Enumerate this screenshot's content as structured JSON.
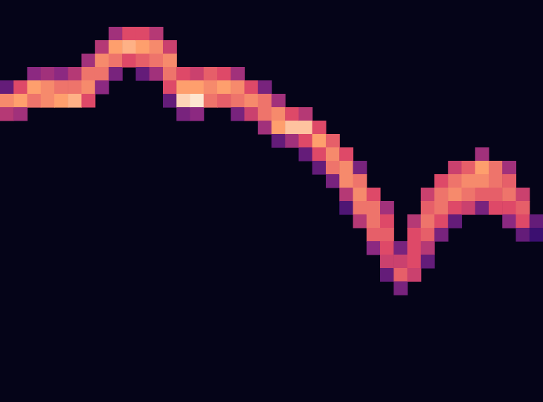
{
  "chart_data": {
    "type": "heatmap",
    "xlim": [
      0,
      40
    ],
    "ylim": [
      0,
      30
    ],
    "tick_labels": false,
    "grid": false,
    "color_range": [
      0,
      1
    ],
    "cells": [
      [
        0,
        6,
        0.3
      ],
      [
        0,
        7,
        0.75
      ],
      [
        0,
        8,
        0.5
      ],
      [
        1,
        6,
        0.6
      ],
      [
        1,
        7,
        0.8
      ],
      [
        1,
        8,
        0.45
      ],
      [
        2,
        5,
        0.4
      ],
      [
        2,
        6,
        0.8
      ],
      [
        2,
        7,
        0.7
      ],
      [
        3,
        5,
        0.45
      ],
      [
        3,
        6,
        0.75
      ],
      [
        3,
        7,
        0.75
      ],
      [
        4,
        5,
        0.4
      ],
      [
        4,
        6,
        0.7
      ],
      [
        4,
        7,
        0.8
      ],
      [
        5,
        5,
        0.5
      ],
      [
        5,
        6,
        0.7
      ],
      [
        5,
        7,
        0.85
      ],
      [
        6,
        4,
        0.45
      ],
      [
        6,
        5,
        0.7
      ],
      [
        6,
        6,
        0.75
      ],
      [
        6,
        7,
        0.6
      ],
      [
        7,
        3,
        0.5
      ],
      [
        7,
        4,
        0.75
      ],
      [
        7,
        5,
        0.7
      ],
      [
        7,
        6,
        0.4
      ],
      [
        8,
        2,
        0.45
      ],
      [
        8,
        3,
        0.8
      ],
      [
        8,
        4,
        0.7
      ],
      [
        8,
        5,
        0.35
      ],
      [
        9,
        2,
        0.6
      ],
      [
        9,
        3,
        0.85
      ],
      [
        9,
        4,
        0.6
      ],
      [
        10,
        2,
        0.6
      ],
      [
        10,
        3,
        0.8
      ],
      [
        10,
        4,
        0.65
      ],
      [
        10,
        5,
        0.3
      ],
      [
        11,
        2,
        0.5
      ],
      [
        11,
        3,
        0.75
      ],
      [
        11,
        4,
        0.7
      ],
      [
        11,
        5,
        0.45
      ],
      [
        12,
        3,
        0.55
      ],
      [
        12,
        4,
        0.75
      ],
      [
        12,
        5,
        0.7
      ],
      [
        12,
        6,
        0.6
      ],
      [
        12,
        7,
        0.3
      ],
      [
        13,
        5,
        0.6
      ],
      [
        13,
        6,
        0.8
      ],
      [
        13,
        7,
        0.95
      ],
      [
        13,
        8,
        0.35
      ],
      [
        14,
        5,
        0.55
      ],
      [
        14,
        6,
        0.8
      ],
      [
        14,
        7,
        1.0
      ],
      [
        14,
        8,
        0.4
      ],
      [
        15,
        5,
        0.65
      ],
      [
        15,
        6,
        0.75
      ],
      [
        15,
        7,
        0.7
      ],
      [
        16,
        5,
        0.6
      ],
      [
        16,
        6,
        0.8
      ],
      [
        16,
        7,
        0.65
      ],
      [
        17,
        5,
        0.45
      ],
      [
        17,
        6,
        0.75
      ],
      [
        17,
        7,
        0.7
      ],
      [
        17,
        8,
        0.35
      ],
      [
        18,
        6,
        0.6
      ],
      [
        18,
        7,
        0.75
      ],
      [
        18,
        8,
        0.55
      ],
      [
        19,
        6,
        0.35
      ],
      [
        19,
        7,
        0.7
      ],
      [
        19,
        8,
        0.7
      ],
      [
        19,
        9,
        0.45
      ],
      [
        20,
        7,
        0.45
      ],
      [
        20,
        8,
        0.75
      ],
      [
        20,
        9,
        0.8
      ],
      [
        20,
        10,
        0.3
      ],
      [
        21,
        8,
        0.6
      ],
      [
        21,
        9,
        0.9
      ],
      [
        21,
        10,
        0.45
      ],
      [
        22,
        8,
        0.5
      ],
      [
        22,
        9,
        0.9
      ],
      [
        22,
        10,
        0.6
      ],
      [
        22,
        11,
        0.3
      ],
      [
        23,
        9,
        0.6
      ],
      [
        23,
        10,
        0.8
      ],
      [
        23,
        11,
        0.6
      ],
      [
        23,
        12,
        0.3
      ],
      [
        24,
        10,
        0.65
      ],
      [
        24,
        11,
        0.75
      ],
      [
        24,
        12,
        0.7
      ],
      [
        24,
        13,
        0.35
      ],
      [
        25,
        11,
        0.6
      ],
      [
        25,
        12,
        0.75
      ],
      [
        25,
        13,
        0.75
      ],
      [
        25,
        14,
        0.5
      ],
      [
        25,
        15,
        0.25
      ],
      [
        26,
        12,
        0.35
      ],
      [
        26,
        13,
        0.7
      ],
      [
        26,
        14,
        0.75
      ],
      [
        26,
        15,
        0.7
      ],
      [
        26,
        16,
        0.5
      ],
      [
        27,
        14,
        0.6
      ],
      [
        27,
        15,
        0.7
      ],
      [
        27,
        16,
        0.7
      ],
      [
        27,
        17,
        0.65
      ],
      [
        27,
        18,
        0.4
      ],
      [
        28,
        15,
        0.45
      ],
      [
        28,
        16,
        0.6
      ],
      [
        28,
        17,
        0.65
      ],
      [
        28,
        18,
        0.6
      ],
      [
        28,
        19,
        0.55
      ],
      [
        28,
        20,
        0.3
      ],
      [
        29,
        18,
        0.35
      ],
      [
        29,
        19,
        0.55
      ],
      [
        29,
        20,
        0.65
      ],
      [
        29,
        21,
        0.35
      ],
      [
        30,
        16,
        0.5
      ],
      [
        30,
        17,
        0.6
      ],
      [
        30,
        18,
        0.6
      ],
      [
        30,
        19,
        0.6
      ],
      [
        30,
        20,
        0.55
      ],
      [
        31,
        14,
        0.55
      ],
      [
        31,
        15,
        0.65
      ],
      [
        31,
        16,
        0.7
      ],
      [
        31,
        17,
        0.65
      ],
      [
        31,
        18,
        0.5
      ],
      [
        31,
        19,
        0.3
      ],
      [
        32,
        13,
        0.6
      ],
      [
        32,
        14,
        0.7
      ],
      [
        32,
        15,
        0.7
      ],
      [
        32,
        16,
        0.6
      ],
      [
        32,
        17,
        0.35
      ],
      [
        33,
        12,
        0.55
      ],
      [
        33,
        13,
        0.7
      ],
      [
        33,
        14,
        0.75
      ],
      [
        33,
        15,
        0.6
      ],
      [
        33,
        16,
        0.3
      ],
      [
        34,
        12,
        0.65
      ],
      [
        34,
        13,
        0.75
      ],
      [
        34,
        14,
        0.7
      ],
      [
        34,
        15,
        0.55
      ],
      [
        35,
        11,
        0.45
      ],
      [
        35,
        12,
        0.8
      ],
      [
        35,
        13,
        0.75
      ],
      [
        35,
        14,
        0.65
      ],
      [
        35,
        15,
        0.35
      ],
      [
        36,
        12,
        0.7
      ],
      [
        36,
        13,
        0.7
      ],
      [
        36,
        14,
        0.65
      ],
      [
        36,
        15,
        0.6
      ],
      [
        37,
        12,
        0.45
      ],
      [
        37,
        13,
        0.65
      ],
      [
        37,
        14,
        0.7
      ],
      [
        37,
        15,
        0.6
      ],
      [
        37,
        16,
        0.4
      ],
      [
        38,
        14,
        0.55
      ],
      [
        38,
        15,
        0.65
      ],
      [
        38,
        16,
        0.6
      ],
      [
        38,
        17,
        0.3
      ],
      [
        39,
        16,
        0.3
      ],
      [
        39,
        17,
        0.2
      ]
    ]
  }
}
